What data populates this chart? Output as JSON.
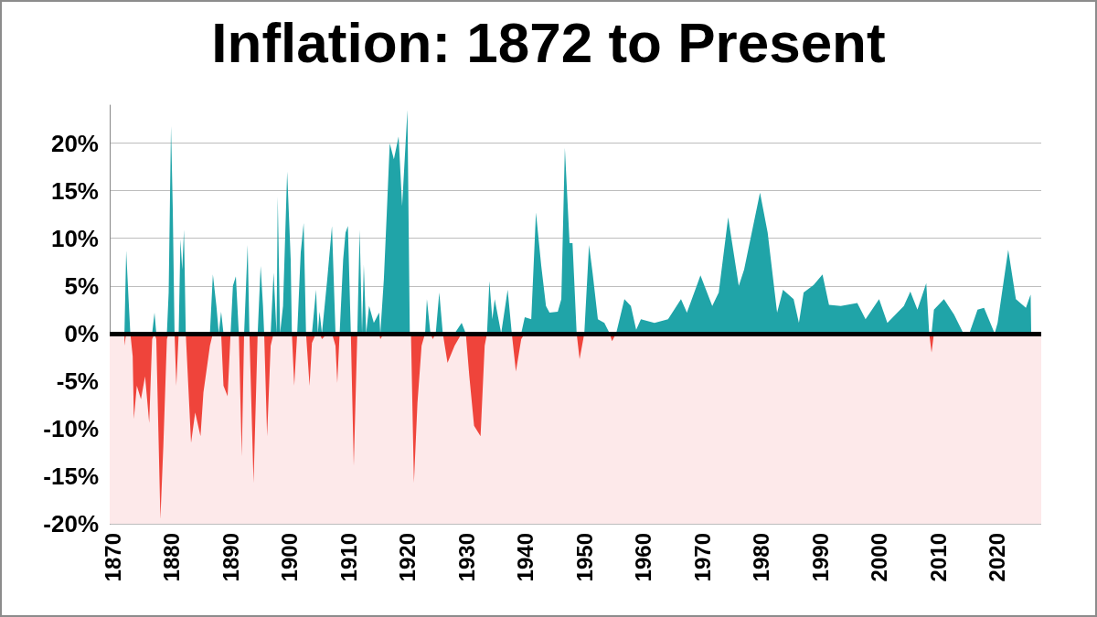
{
  "chart_data": {
    "type": "area",
    "title": "Inflation: 1872 to Present",
    "x": [
      1872.0,
      1872.3,
      1872.7,
      1873.0,
      1873.4,
      1873.6,
      1874.1,
      1874.8,
      1875.5,
      1876.2,
      1876.7,
      1877.1,
      1877.4,
      1878.1,
      1878.6,
      1879.2,
      1879.5,
      1879.9,
      1880.2,
      1880.5,
      1880.8,
      1881.2,
      1881.5,
      1881.8,
      1882.1,
      1882.4,
      1883.3,
      1884.0,
      1884.9,
      1885.4,
      1886.5,
      1887.0,
      1887.6,
      1888.0,
      1888.4,
      1888.8,
      1889.5,
      1890.0,
      1890.4,
      1890.9,
      1891.4,
      1891.9,
      1892.3,
      1892.9,
      1893.2,
      1893.9,
      1894.6,
      1895.1,
      1895.5,
      1895.7,
      1896.2,
      1896.8,
      1897.3,
      1897.8,
      1898.0,
      1898.4,
      1898.9,
      1899.6,
      1900.2,
      1900.4,
      1900.8,
      1901.3,
      1901.9,
      1902.4,
      1902.8,
      1903.4,
      1903.8,
      1904.5,
      1904.8,
      1905.1,
      1905.5,
      1906.4,
      1907.2,
      1907.8,
      1908.1,
      1908.5,
      1909.1,
      1909.5,
      1909.9,
      1910.4,
      1910.9,
      1911.5,
      1911.9,
      1912.3,
      1912.6,
      1913.0,
      1913.5,
      1914.3,
      1915.2,
      1915.4,
      1916.0,
      1916.5,
      1917.0,
      1917.7,
      1918.5,
      1919.1,
      1920.0,
      1920.4,
      1920.6,
      1921.1,
      1921.7,
      1922.4,
      1923.0,
      1923.3,
      1923.9,
      1924.3,
      1924.8,
      1925.4,
      1926.0,
      1926.8,
      1928.0,
      1929.2,
      1929.9,
      1930.5,
      1931.3,
      1932.4,
      1933.1,
      1933.5,
      1933.9,
      1934.4,
      1934.8,
      1935.9,
      1937.0,
      1937.7,
      1938.4,
      1939.3,
      1939.9,
      1941.0,
      1941.8,
      1942.7,
      1943.5,
      1944.1,
      1945.5,
      1946.1,
      1946.7,
      1947.5,
      1948.0,
      1948.7,
      1949.2,
      1950.0,
      1950.8,
      1951.4,
      1952.3,
      1953.4,
      1954.3,
      1954.7,
      1955.4,
      1956.8,
      1957.9,
      1958.8,
      1959.6,
      1961.9,
      1964.2,
      1966.4,
      1967.4,
      1969.7,
      1971.7,
      1972.8,
      1974.4,
      1976.2,
      1977.1,
      1979.8,
      1981.1,
      1982.7,
      1983.7,
      1985.5,
      1986.4,
      1987.2,
      1988.9,
      1990.4,
      1991.5,
      1993.5,
      1996.3,
      1997.7,
      2000.0,
      2001.4,
      2004.2,
      2005.3,
      2006.5,
      2008.0,
      2008.5,
      2008.9,
      2009.3,
      2011.0,
      2012.7,
      2014.3,
      2015.3,
      2016.7,
      2017.8,
      2019.6,
      2020.1,
      2021.9,
      2023.2,
      2024.9,
      2025.7,
      2025.8
    ],
    "series": [
      {
        "color": "#20a4a8",
        "values": [
          0,
          8.7,
          3.6,
          0,
          0,
          0,
          0,
          0,
          0,
          0,
          0,
          2.2,
          0,
          0,
          0,
          0,
          4.3,
          21.8,
          13.0,
          0,
          0,
          0,
          9.9,
          6.7,
          10.9,
          0,
          0,
          0,
          0,
          0,
          0,
          6.2,
          2.9,
          0,
          2.3,
          0,
          0,
          0,
          5.0,
          6.0,
          0,
          0,
          0,
          9.3,
          0,
          0,
          0,
          7.1,
          2.9,
          0,
          0,
          0,
          6.4,
          0,
          14.4,
          0,
          2.9,
          17.0,
          7.8,
          0,
          0,
          0,
          8.5,
          11.6,
          0,
          0,
          0,
          4.6,
          0,
          2.3,
          0,
          5.7,
          11.3,
          0,
          0,
          0,
          7.8,
          10.6,
          11.3,
          0,
          0,
          0,
          10.9,
          0,
          7.2,
          0,
          2.9,
          1.1,
          2.2,
          0,
          5.7,
          12.7,
          20.0,
          18.3,
          20.7,
          13.4,
          23.5,
          0,
          0,
          0,
          0,
          0,
          0,
          3.6,
          0,
          0,
          0,
          4.3,
          0,
          0,
          0,
          1.1,
          0,
          0,
          0,
          0,
          0,
          0,
          5.5,
          1.5,
          3.6,
          0,
          4.6,
          0,
          0,
          0,
          1.7,
          1.5,
          12.7,
          7.1,
          2.9,
          2.2,
          2.3,
          3.6,
          19.5,
          9.5,
          9.5,
          0,
          0,
          0,
          9.3,
          6.4,
          1.5,
          1.1,
          0,
          0,
          0,
          3.6,
          2.9,
          0.4,
          1.5,
          1.1,
          1.5,
          3.6,
          2.2,
          6.1,
          2.9,
          4.3,
          12.2,
          5.0,
          6.7,
          14.8,
          10.6,
          2.2,
          4.6,
          3.6,
          1.1,
          4.3,
          5.1,
          6.2,
          3.0,
          2.9,
          3.2,
          1.5,
          3.6,
          1.1,
          2.9,
          4.4,
          2.5,
          5.3,
          0,
          0,
          2.5,
          3.6,
          2.0,
          0,
          0,
          2.5,
          2.7,
          0,
          1.1,
          8.8,
          3.6,
          2.7,
          4.1,
          0
        ]
      },
      {
        "color": "#ef443b",
        "values": [
          -1.3,
          0,
          0,
          0,
          -2.4,
          -9.0,
          -5.5,
          -6.9,
          -4.5,
          -9.4,
          -0.6,
          0,
          -0.6,
          -19.5,
          -11.8,
          -0.6,
          0,
          0,
          0,
          0,
          -5.5,
          0,
          0,
          0,
          0,
          0,
          -11.5,
          -8.3,
          -10.8,
          -6.2,
          -1.3,
          0,
          0,
          0,
          0,
          -5.5,
          -6.6,
          0,
          0,
          0,
          0,
          -12.9,
          0,
          0,
          0,
          -15.7,
          0,
          0,
          0,
          0,
          -10.8,
          -1.3,
          0,
          0,
          0,
          0,
          0,
          0,
          0,
          0,
          -5.5,
          0,
          0,
          0,
          0,
          -5.5,
          -1.0,
          0,
          0,
          0,
          -0.6,
          0,
          0,
          -1.3,
          -5.2,
          0,
          0,
          0,
          0,
          0,
          -13.9,
          0,
          0,
          0,
          0,
          0,
          0,
          0,
          0,
          -0.6,
          0,
          0,
          0,
          0,
          0,
          0,
          0,
          0,
          0,
          -15.7,
          -7.3,
          -1.3,
          0,
          0,
          0,
          -0.6,
          0,
          0,
          0,
          -3.1,
          -1.3,
          0,
          0,
          -4.5,
          -9.7,
          -10.8,
          -1.3,
          0,
          0,
          0,
          0,
          0,
          0,
          0,
          -4.0,
          -0.6,
          0,
          0,
          0,
          0,
          0,
          0,
          0,
          0,
          0,
          0,
          0,
          0,
          -2.7,
          0,
          0,
          0,
          0,
          0,
          0,
          -0.8,
          0,
          0,
          0,
          0,
          0,
          0,
          0,
          0,
          0,
          0,
          0,
          0,
          0,
          0,
          0,
          0,
          0,
          0,
          0,
          0,
          0,
          0,
          0,
          0,
          0,
          0,
          0,
          0,
          0,
          0,
          0,
          0,
          0,
          0,
          0,
          -2.0,
          0,
          0,
          0,
          0,
          0,
          0,
          0,
          0,
          0,
          0,
          0,
          0,
          0,
          0
        ]
      }
    ],
    "xlim": [
      1869.5,
      2027.5
    ],
    "xticks": [
      1870,
      1880,
      1890,
      1900,
      1910,
      1920,
      1930,
      1940,
      1950,
      1960,
      1970,
      1980,
      1990,
      2000,
      2010,
      2020
    ],
    "ylim": [
      -20,
      24
    ],
    "yticks": [
      {
        "value": -20,
        "label": "-20%"
      },
      {
        "value": -15,
        "label": "-15%"
      },
      {
        "value": -10,
        "label": "-10%"
      },
      {
        "value": -5,
        "label": "-5%"
      },
      {
        "value": 0,
        "label": "0%"
      },
      {
        "value": 5,
        "label": "5%"
      },
      {
        "value": 10,
        "label": "10%"
      },
      {
        "value": 15,
        "label": "15%"
      },
      {
        "value": 20,
        "label": "20%"
      }
    ],
    "bands": [
      {
        "axis": "y",
        "from": -20,
        "to": 0,
        "color": "#fde9ea"
      }
    ],
    "ref_lines": [
      {
        "axis": "y",
        "value": 0,
        "color": "#000000"
      }
    ],
    "grid": "y"
  }
}
